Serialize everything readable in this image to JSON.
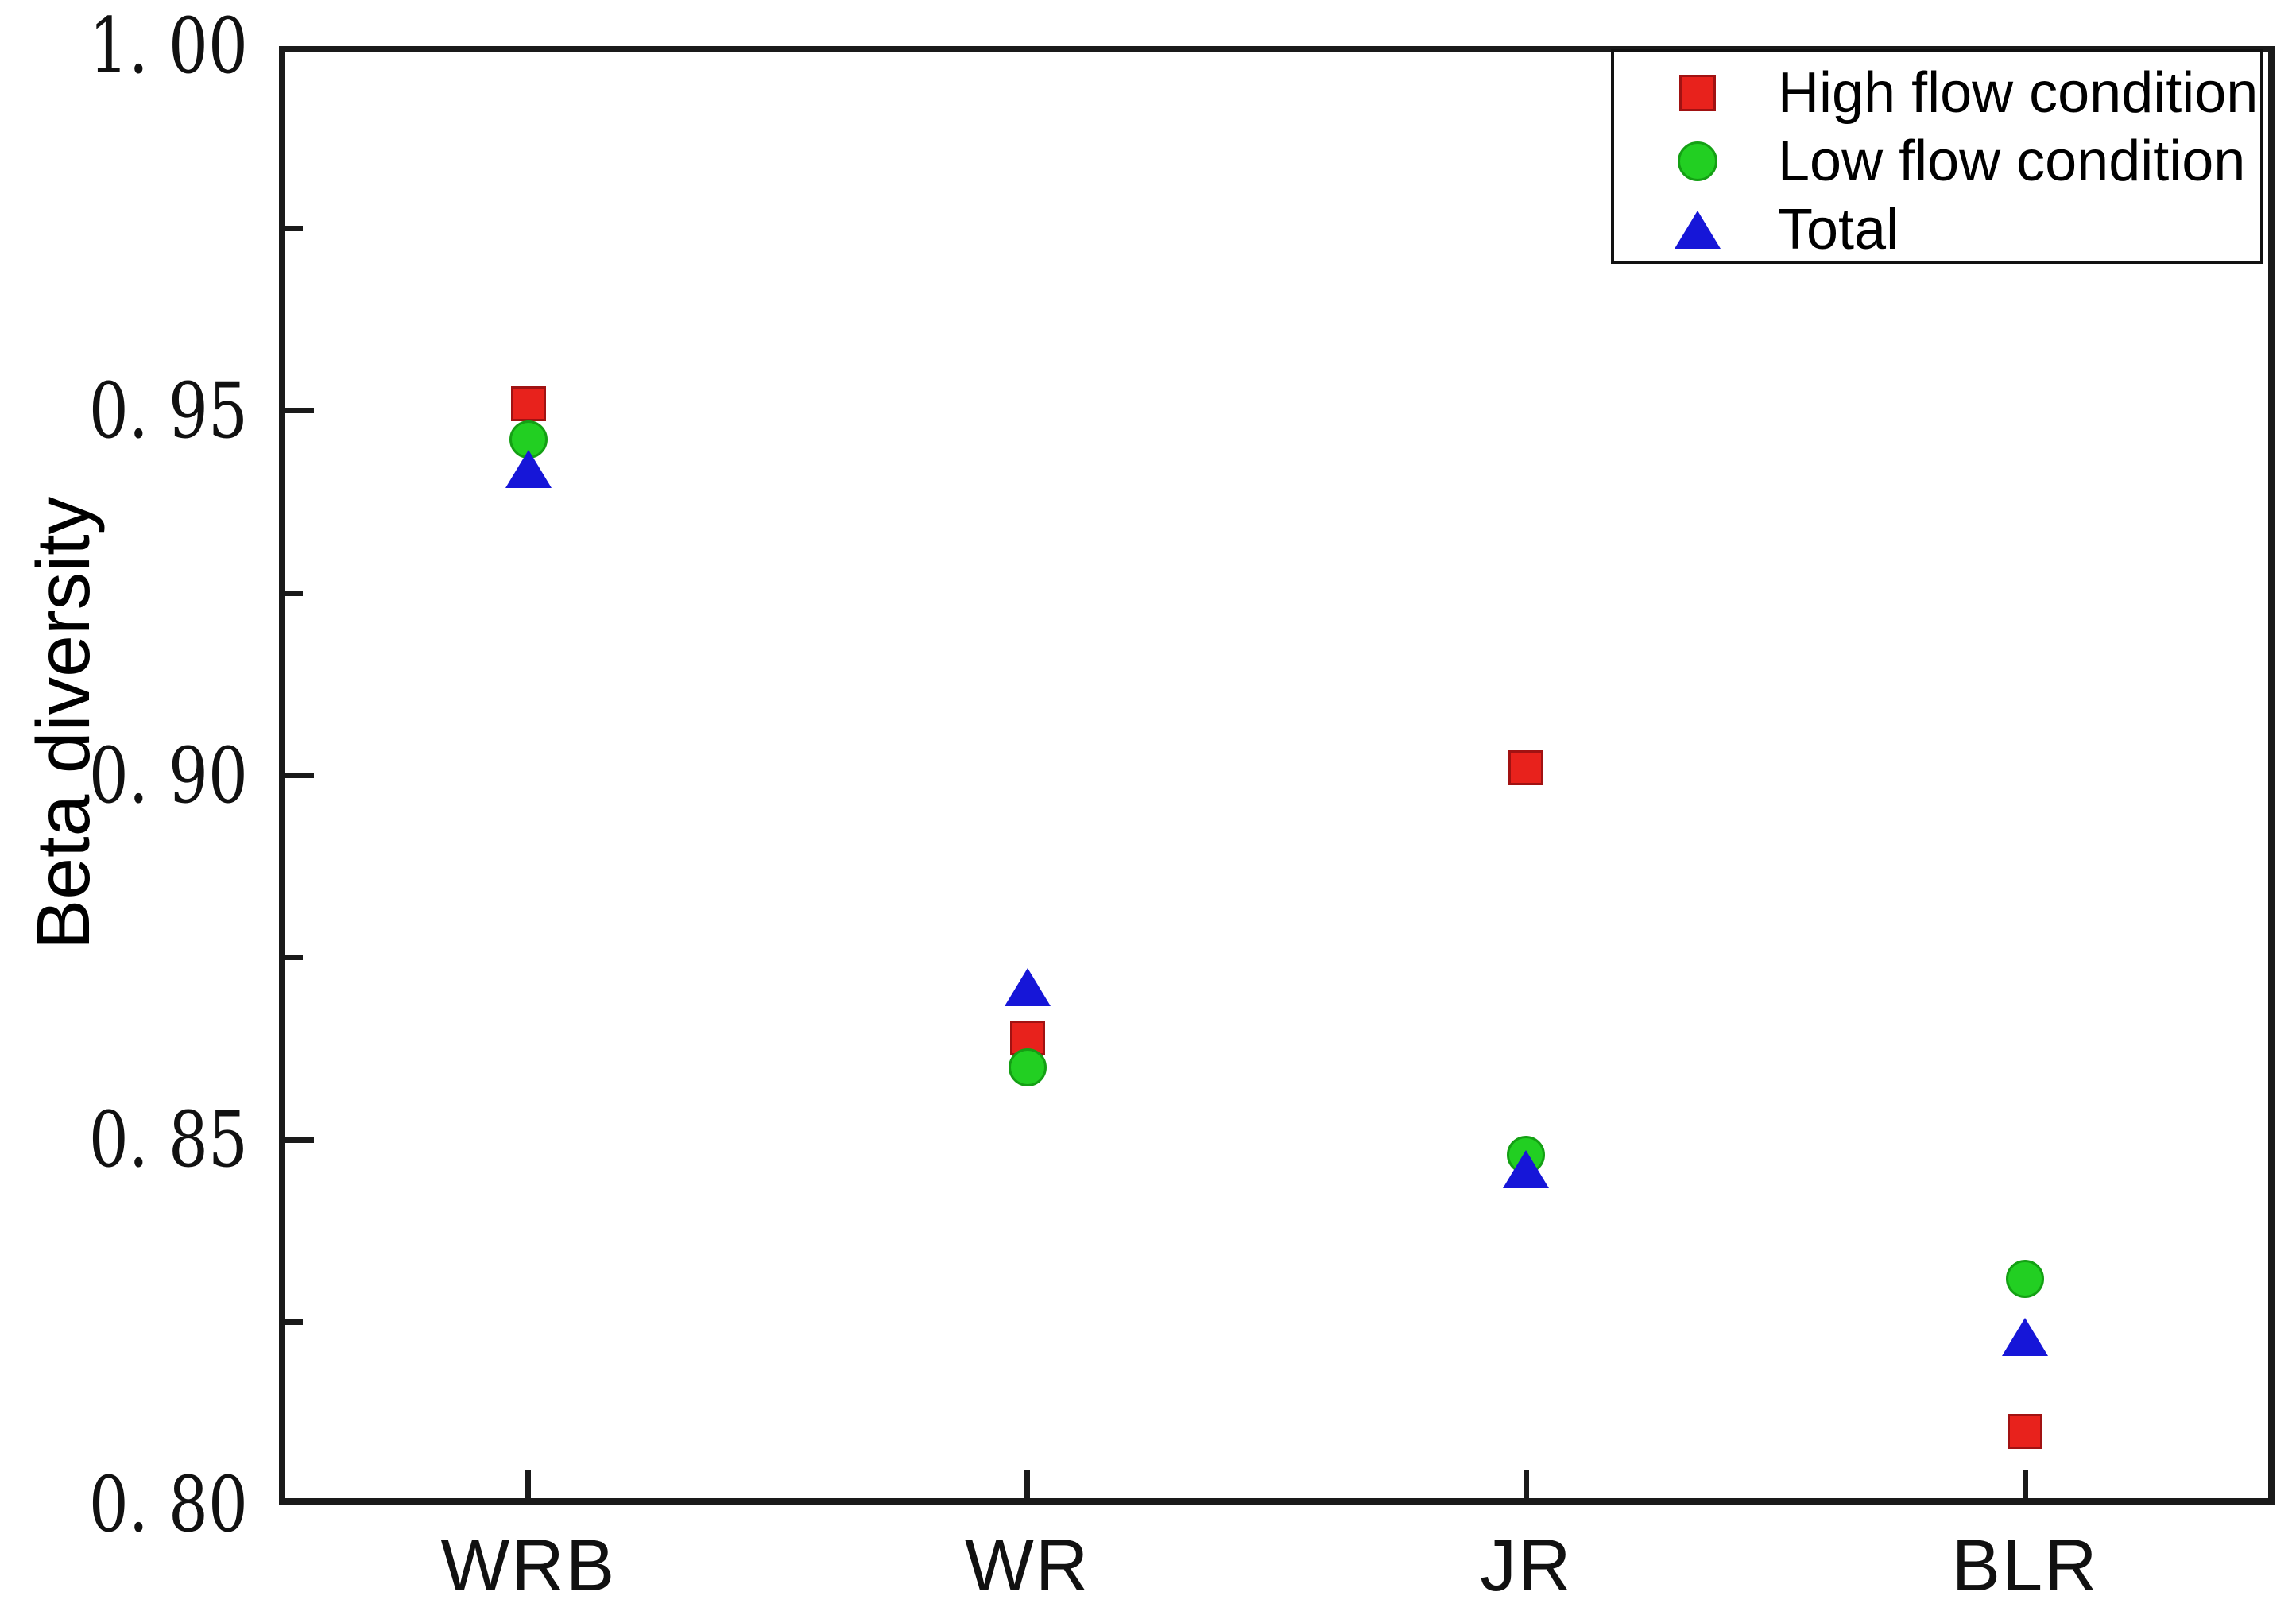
{
  "figure": {
    "background_color": "#ffffff",
    "axis_color": "#1a1a1a",
    "text_color": "#111111"
  },
  "chart_data": {
    "type": "scatter",
    "title": "",
    "xlabel": "",
    "ylabel": "Beta diversity",
    "categories": [
      "WRB",
      "WR",
      "JR",
      "BLR"
    ],
    "ylim": [
      0.8,
      1.0
    ],
    "grid": false,
    "legend_position": "top-right",
    "y_major_ticks": [
      {
        "value": 1.0,
        "label": "1. 00"
      },
      {
        "value": 0.95,
        "label": "0. 95"
      },
      {
        "value": 0.9,
        "label": "0. 90"
      },
      {
        "value": 0.85,
        "label": "0. 85"
      },
      {
        "value": 0.8,
        "label": "0. 80"
      }
    ],
    "y_minor_ticks": [
      0.975,
      0.925,
      0.875,
      0.825
    ],
    "series": [
      {
        "name": "High flow condition",
        "marker": "square",
        "color": "#e8221c",
        "edge_color": "#a11212",
        "values": [
          0.951,
          0.864,
          0.901,
          0.81
        ]
      },
      {
        "name": "Low flow condition",
        "marker": "circle",
        "color": "#22cf22",
        "edge_color": "#14a014",
        "values": [
          0.946,
          0.86,
          0.848,
          0.831
        ]
      },
      {
        "name": "Total",
        "marker": "triangle",
        "color": "#1616d8",
        "edge_color": "#0e0ea8",
        "values": [
          0.942,
          0.871,
          0.846,
          0.823
        ]
      }
    ]
  }
}
